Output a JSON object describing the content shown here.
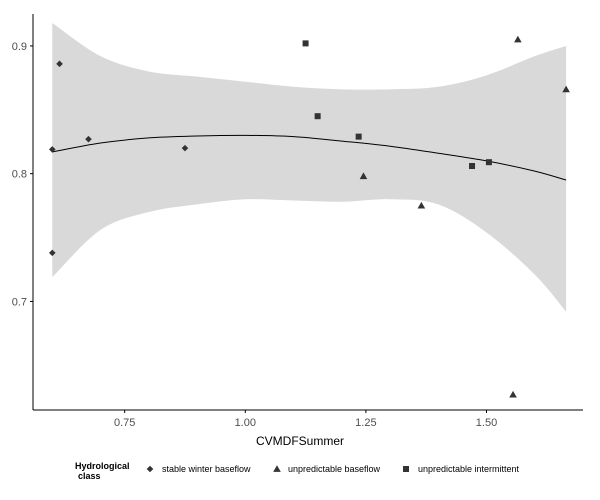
{
  "chart_data": {
    "type": "scatter",
    "title": "",
    "xlabel": "CVMDFSummer",
    "ylabel": "",
    "xlim": [
      0.56,
      1.7
    ],
    "ylim": [
      0.615,
      0.925
    ],
    "x_ticks": [
      0.75,
      1.0,
      1.25,
      1.5
    ],
    "x_tick_labels": [
      "0.75",
      "1.00",
      "1.25",
      "1.50"
    ],
    "y_ticks": [
      0.7,
      0.8,
      0.9
    ],
    "y_tick_labels": [
      "0.7",
      "0.8",
      "0.9"
    ],
    "grid": false,
    "legend": {
      "title_line1": "Hydrological",
      "title_line2": "class",
      "placement": "bottom"
    },
    "series": [
      {
        "name": "stable winter baseflow",
        "marker": "diamond",
        "points": [
          {
            "x": 0.6,
            "y": 0.819
          },
          {
            "x": 0.615,
            "y": 0.886
          },
          {
            "x": 0.675,
            "y": 0.827
          },
          {
            "x": 0.875,
            "y": 0.82
          },
          {
            "x": 0.6,
            "y": 0.738
          }
        ]
      },
      {
        "name": "unpredictable baseflow",
        "marker": "triangle",
        "points": [
          {
            "x": 1.565,
            "y": 0.905
          },
          {
            "x": 1.665,
            "y": 0.866
          },
          {
            "x": 1.245,
            "y": 0.798
          },
          {
            "x": 1.365,
            "y": 0.775
          },
          {
            "x": 1.555,
            "y": 0.627
          }
        ]
      },
      {
        "name": "unpredictable intermittent",
        "marker": "square",
        "points": [
          {
            "x": 1.125,
            "y": 0.902
          },
          {
            "x": 1.15,
            "y": 0.845
          },
          {
            "x": 1.235,
            "y": 0.829
          },
          {
            "x": 1.47,
            "y": 0.806
          },
          {
            "x": 1.505,
            "y": 0.809
          }
        ]
      }
    ],
    "smooth": {
      "x": [
        0.6,
        0.7,
        0.8,
        0.9,
        1.0,
        1.1,
        1.2,
        1.3,
        1.4,
        1.5,
        1.6,
        1.665
      ],
      "y": [
        0.817,
        0.824,
        0.828,
        0.8295,
        0.83,
        0.829,
        0.8255,
        0.8215,
        0.816,
        0.81,
        0.802,
        0.795
      ],
      "upper": [
        0.918,
        0.892,
        0.88,
        0.876,
        0.872,
        0.868,
        0.866,
        0.866,
        0.868,
        0.877,
        0.892,
        0.9
      ],
      "lower": [
        0.719,
        0.756,
        0.77,
        0.776,
        0.78,
        0.779,
        0.778,
        0.78,
        0.776,
        0.754,
        0.721,
        0.692
      ]
    },
    "colors": {
      "points": "#333333",
      "band": "#d9d9d9",
      "line": "#000000",
      "axis": "#000000"
    }
  }
}
